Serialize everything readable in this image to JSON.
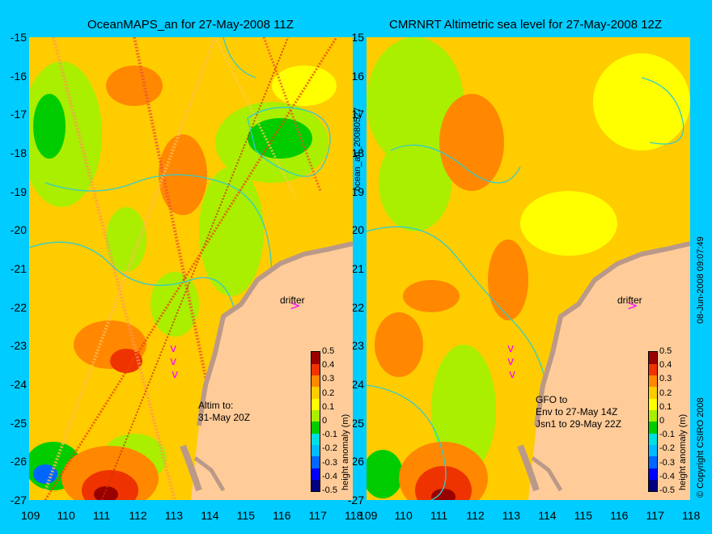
{
  "panels": [
    {
      "title": "OceanMAPS_an for 27-May-2008 11Z",
      "drifter": "drifter",
      "annotation": [
        "Altim to:",
        "31-May 20Z"
      ]
    },
    {
      "title": "CMRNRT Altimetric sea level  for 27-May-2008 12Z",
      "drifter": "drifter",
      "annotation": [
        "GFO to",
        "Env to 27-May 14Z",
        "Jsn1 to 29-May 22Z"
      ]
    }
  ],
  "side_labels": {
    "left_vertical": "ocean_an_20080527",
    "right_vertical_date": "08-Jun-2008 09:07:49",
    "right_vertical_copyright": "© Copyright CSIRO 2008"
  },
  "colorbar": {
    "label": "height anomaly (m)",
    "ticks": [
      "0.5",
      "0.4",
      "0.3",
      "0.2",
      "0.1",
      "0",
      "-0.1",
      "-0.2",
      "-0.3",
      "-0.4",
      "-0.5"
    ],
    "colors": [
      "#000080",
      "#0000ff",
      "#0066ff",
      "#00bbff",
      "#00e0e0",
      "#00cc00",
      "#aaee00",
      "#ffff00",
      "#ffcc00",
      "#ff8800",
      "#ee3300",
      "#990000"
    ]
  },
  "axes": {
    "y_ticks": [
      "-15",
      "-16",
      "-17",
      "-18",
      "-19",
      "-20",
      "-21",
      "-22",
      "-23",
      "-24",
      "-25",
      "-26",
      "-27"
    ],
    "x_ticks_left": [
      "109",
      "110",
      "111",
      "112",
      "113",
      "114",
      "115",
      "116",
      "117",
      "118"
    ],
    "x_ticks_right": [
      "109",
      "110",
      "111",
      "112",
      "113",
      "114",
      "115",
      "116",
      "117",
      "118"
    ],
    "lat_range": [
      -27,
      -15
    ],
    "lon_range": [
      109,
      118
    ]
  },
  "colors": {
    "background": "#00ccff",
    "land": "#ffcc99",
    "reef": "#bb9988",
    "contour": "#33cccc",
    "drifter_arrow": "#ff00ff"
  }
}
